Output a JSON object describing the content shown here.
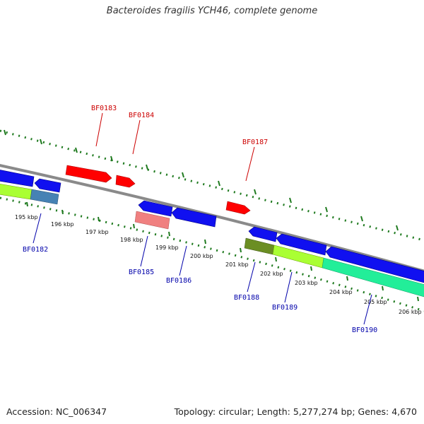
{
  "title": "Bacteroides fragilis YCH46, complete genome",
  "footer": {
    "accession": "Accession: NC_006347",
    "summary": "Topology: circular; Length: 5,277,274 bp; Genes: 4,670"
  },
  "colors": {
    "backbone": "#8a8a8a",
    "tick": "#1f7a1f",
    "red_gene": "#ff0000",
    "red_label": "#cc0000",
    "blue_gene": "#1010f0",
    "blue_label": "#0000aa",
    "lime": "#aaff33",
    "steel": "#4682b4",
    "olive": "#6b8e23",
    "salmon": "#f08080",
    "teal": "#22ee99"
  },
  "kbp_labels": [
    "195 kbp",
    "196 kbp",
    "197 kbp",
    "198 kbp",
    "199 kbp",
    "200 kbp",
    "201 kbp",
    "202 kbp",
    "203 kbp",
    "204 kbp",
    "205 kbp",
    "206 kbp"
  ],
  "gene_labels": {
    "top": [
      "BF0183",
      "BF0184",
      "BF0187"
    ],
    "bottom": [
      "BF0182",
      "BF0185",
      "BF0186",
      "BF0188",
      "BF0189",
      "BF0190"
    ]
  }
}
